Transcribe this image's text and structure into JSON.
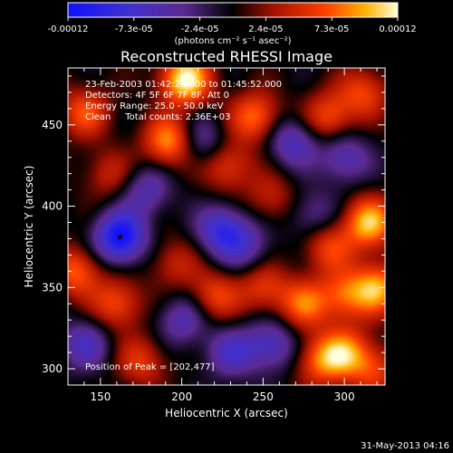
{
  "chart_data": {
    "type": "heatmap",
    "title": "Reconstructed RHESSI Image",
    "xlabel": "Heliocentric X (arcsec)",
    "ylabel": "Heliocentric Y (arcsec)",
    "xlim": [
      130,
      325
    ],
    "ylim": [
      290,
      485
    ],
    "x_ticks": [
      150,
      200,
      250,
      300
    ],
    "y_ticks": [
      300,
      350,
      400,
      450
    ],
    "colorbar": {
      "min": -0.00012,
      "max": 0.00012,
      "tick_labels": [
        "-0.00012",
        "-7.3e-05",
        "-2.4e-05",
        "2.4e-05",
        "7.3e-05",
        "0.00012"
      ],
      "unit_label": "(photons cm⁻² s⁻¹ asec⁻²)"
    },
    "annotations": [
      "23-Feb-2003 01:42:24.000 to 01:45:52.000",
      "Detectors: 4F 5F 6F 7F 8F, Att 0",
      "Energy Range: 25.0 - 50.0 keV",
      "Clean     Total counts: 2.36E+03"
    ],
    "peak_label": "Position of Peak = [202,477]",
    "peak_position": [
      202,
      477
    ],
    "blobs": [
      {
        "x": 202,
        "y": 478,
        "v": 1.0
      },
      {
        "x": 192,
        "y": 440,
        "v": 0.75
      },
      {
        "x": 140,
        "y": 458,
        "v": 0.55
      },
      {
        "x": 155,
        "y": 420,
        "v": 0.35
      },
      {
        "x": 178,
        "y": 410,
        "v": -0.45
      },
      {
        "x": 162,
        "y": 381,
        "v": -1.0
      },
      {
        "x": 225,
        "y": 385,
        "v": -0.7
      },
      {
        "x": 212,
        "y": 440,
        "v": -0.4
      },
      {
        "x": 245,
        "y": 455,
        "v": 0.65
      },
      {
        "x": 290,
        "y": 455,
        "v": 0.55
      },
      {
        "x": 312,
        "y": 470,
        "v": 0.5
      },
      {
        "x": 268,
        "y": 440,
        "v": -0.55
      },
      {
        "x": 300,
        "y": 430,
        "v": -0.5
      },
      {
        "x": 228,
        "y": 425,
        "v": 0.5
      },
      {
        "x": 255,
        "y": 405,
        "v": 0.35
      },
      {
        "x": 280,
        "y": 395,
        "v": -0.35
      },
      {
        "x": 315,
        "y": 390,
        "v": 0.85
      },
      {
        "x": 320,
        "y": 350,
        "v": 0.75
      },
      {
        "x": 300,
        "y": 345,
        "v": 0.55
      },
      {
        "x": 275,
        "y": 340,
        "v": 0.6
      },
      {
        "x": 250,
        "y": 350,
        "v": 0.45
      },
      {
        "x": 220,
        "y": 345,
        "v": 0.5
      },
      {
        "x": 195,
        "y": 365,
        "v": 0.35
      },
      {
        "x": 200,
        "y": 330,
        "v": -0.45
      },
      {
        "x": 160,
        "y": 340,
        "v": 0.55
      },
      {
        "x": 135,
        "y": 360,
        "v": 0.6
      },
      {
        "x": 140,
        "y": 315,
        "v": -0.5
      },
      {
        "x": 175,
        "y": 305,
        "v": 0.45
      },
      {
        "x": 230,
        "y": 310,
        "v": -0.5
      },
      {
        "x": 255,
        "y": 315,
        "v": -0.55
      },
      {
        "x": 285,
        "y": 305,
        "v": 0.55
      },
      {
        "x": 300,
        "y": 310,
        "v": 0.65
      },
      {
        "x": 318,
        "y": 300,
        "v": 0.45
      },
      {
        "x": 290,
        "y": 375,
        "v": 0.5
      },
      {
        "x": 240,
        "y": 375,
        "v": -0.35
      }
    ]
  },
  "footer_date": "31-May-2013 04:16"
}
